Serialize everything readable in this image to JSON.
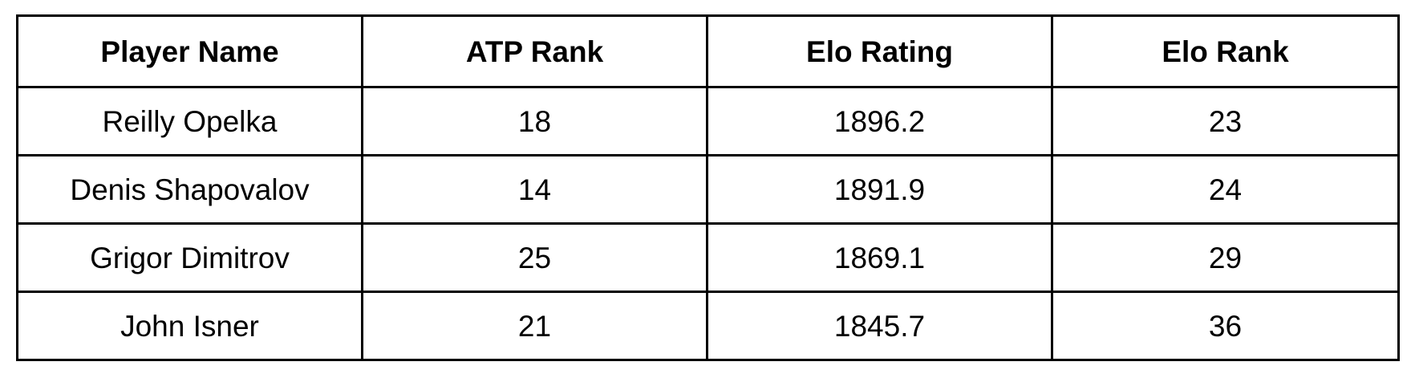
{
  "table": {
    "headers": [
      "Player Name",
      "ATP Rank",
      "Elo Rating",
      "Elo Rank"
    ],
    "rows": [
      [
        "Reilly Opelka",
        "18",
        "1896.2",
        "23"
      ],
      [
        "Denis Shapovalov",
        "14",
        "1891.9",
        "24"
      ],
      [
        "Grigor Dimitrov",
        "25",
        "1869.1",
        "29"
      ],
      [
        "John Isner",
        "21",
        "1845.7",
        "36"
      ]
    ]
  }
}
